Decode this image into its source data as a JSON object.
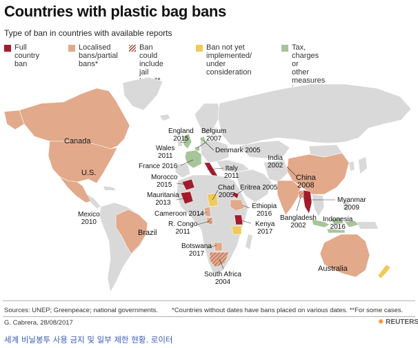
{
  "title": "Countries with plastic bag bans",
  "subtitle": "Type of ban in countries with available reports",
  "colors": {
    "full_ban": "#a31b2c",
    "localised": "#e2a98b",
    "jail": "#a05a4a",
    "not_yet": "#f0c95a",
    "tax": "#a8c49a",
    "land": "#d9d9d9",
    "ocean": "#ffffff"
  },
  "legend": [
    {
      "key": "full",
      "label": "Full country\nban",
      "swatch": "full_ban"
    },
    {
      "key": "local",
      "label": "Localised\nbans/partial\nbans*",
      "swatch": "localised"
    },
    {
      "key": "jail",
      "label": "Ban could\ninclude jail\nterm**",
      "swatch": "jail",
      "pattern": "hatch"
    },
    {
      "key": "notyet",
      "label": "Ban not yet\nimplemented/\nunder consideration",
      "swatch": "not_yet"
    },
    {
      "key": "tax",
      "label": "Tax, charges or\nother measures\ninstead of fines",
      "swatch": "tax"
    }
  ],
  "labels": {
    "canada": "Canada",
    "us": "U.S.",
    "mexico": "Mexico\n2010",
    "brazil": "Brazil",
    "england": "England\n2015",
    "wales": "Wales\n2011",
    "belgium": "Belgium\n2007",
    "denmark": "Denmark 2005",
    "france": "France 2016",
    "italy": "Italy\n2011",
    "morocco": "Morocco\n2015",
    "mauritania": "Mauritania\n2013",
    "chad": "Chad\n2005",
    "eritrea": "Eritrea 2005",
    "ethiopia": "Ethiopia\n2016",
    "cameroon": "Cameroon 2014",
    "rcongo": "R. Congo\n2011",
    "kenya": "Kenya\n2017",
    "botswana": "Botswana\n2017",
    "southafrica": "South Africa\n2004",
    "india": "India\n2002",
    "china": "China\n2008",
    "bangladesh": "Bangladesh\n2002",
    "myanmar": "Myanmar\n2009",
    "indonesia": "Indonesia\n2016",
    "australia": "Australia"
  },
  "footer": {
    "sources": "Sources: UNEP; Greenpeace; national governments.",
    "footnote": "*Countries without dates have bans placed on various dates. **For some cases.",
    "credit": "G. Cabrera, 28/08/2017",
    "brand": "REUTERS",
    "caption": "세계 비닐봉투 사용 금지 및 일부 제한 현황. 로이터"
  }
}
